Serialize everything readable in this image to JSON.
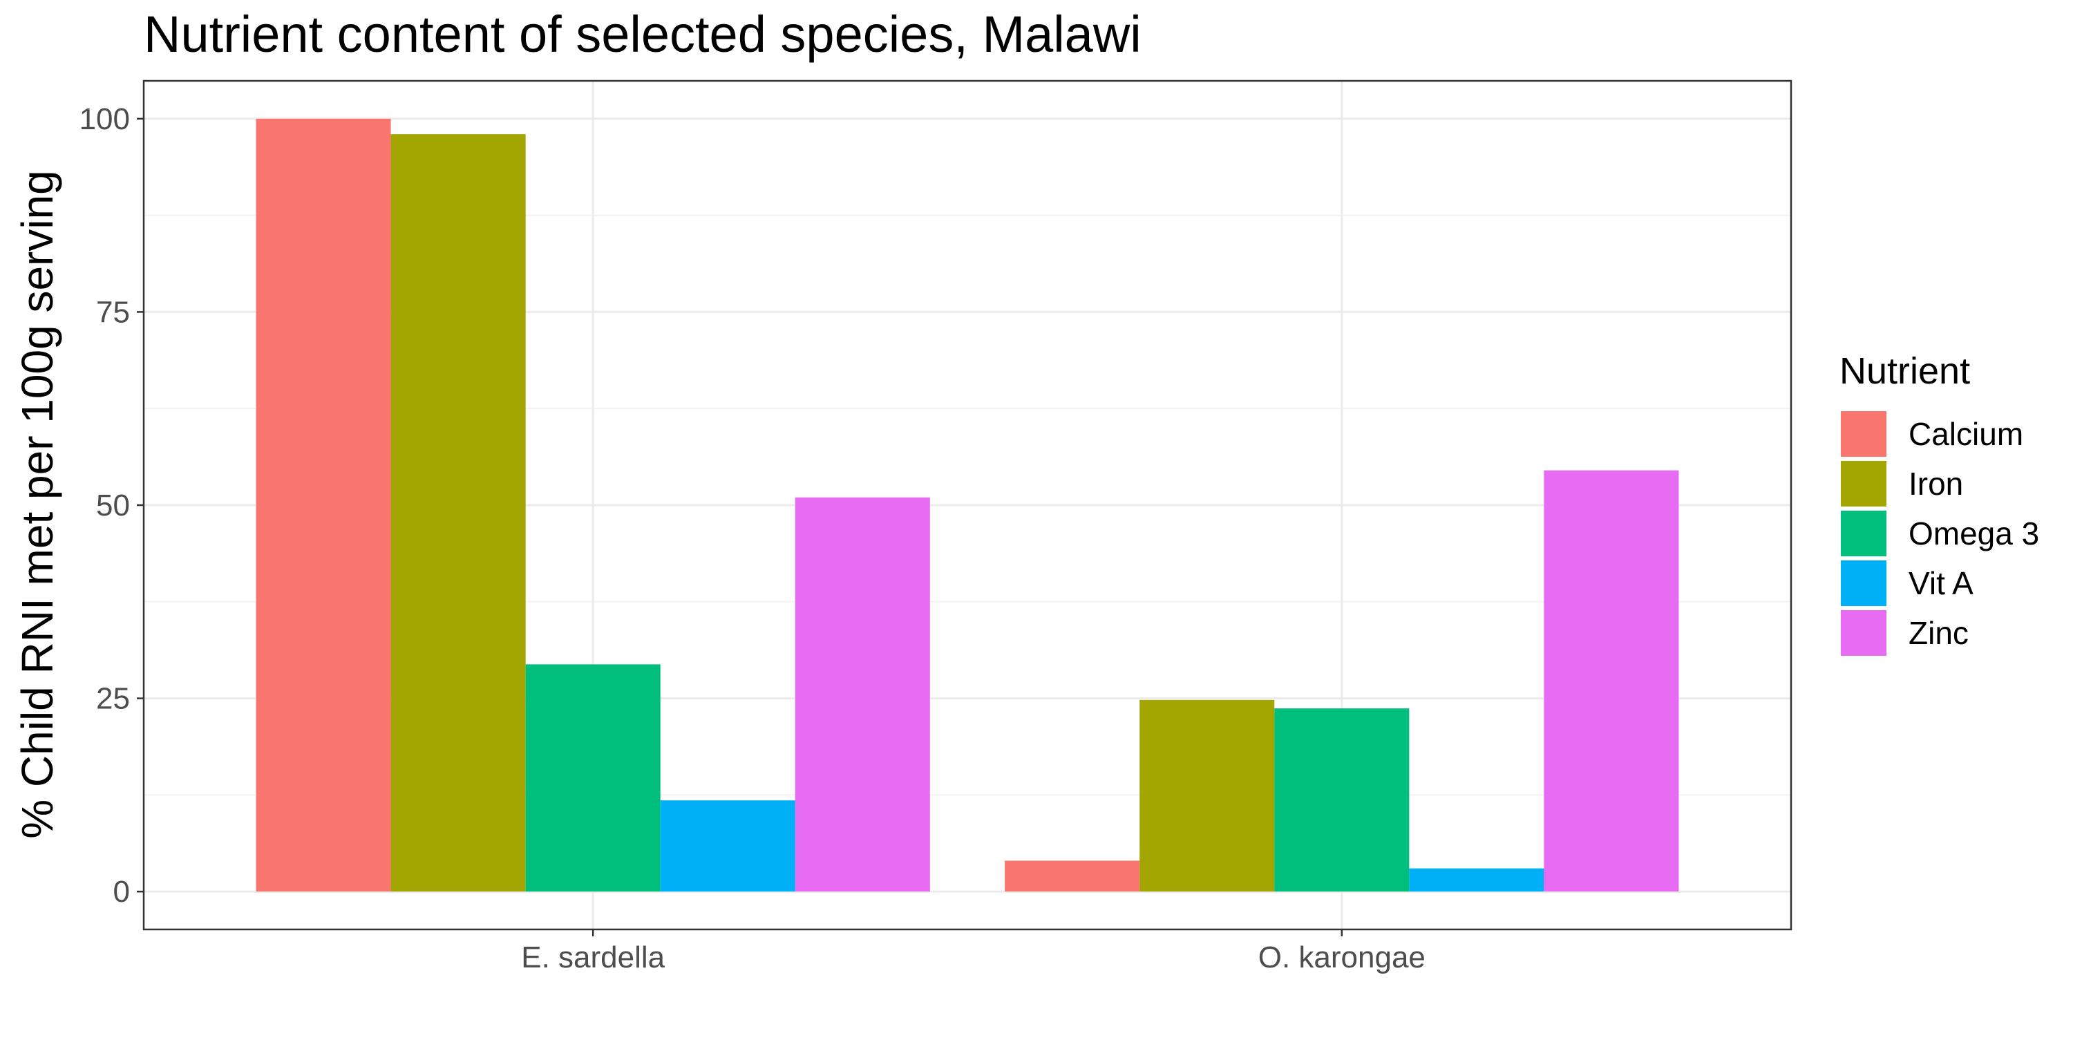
{
  "chart_data": {
    "type": "bar",
    "title": "Nutrient content of selected species, Malawi",
    "xlabel": "",
    "ylabel": "% Child RNI met per 100g serving",
    "categories": [
      "E. sardella",
      "O. karongae"
    ],
    "series": [
      {
        "name": "Calcium",
        "color": "#F8766D",
        "values": [
          100,
          4
        ]
      },
      {
        "name": "Iron",
        "color": "#A3A500",
        "values": [
          98,
          24.8
        ]
      },
      {
        "name": "Omega 3",
        "color": "#00BF7D",
        "values": [
          29.4,
          23.7
        ]
      },
      {
        "name": "Vit A",
        "color": "#00B0F6",
        "values": [
          11.8,
          3
        ]
      },
      {
        "name": "Zinc",
        "color": "#E76BF3",
        "values": [
          51,
          54.5
        ]
      }
    ],
    "yticks": [
      0,
      25,
      50,
      75,
      100
    ],
    "ylim": [
      -4.9,
      104.9
    ],
    "grid": true,
    "legend": {
      "title": "Nutrient",
      "position": "right"
    }
  }
}
